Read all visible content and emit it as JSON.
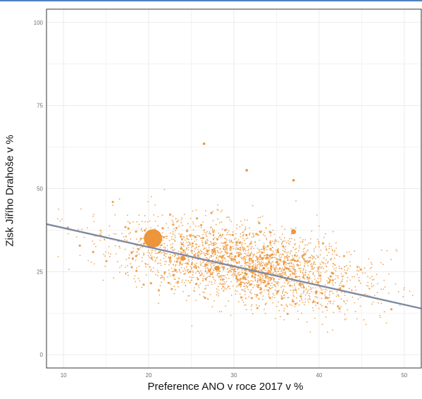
{
  "colors": {
    "accent": "#ec953a",
    "line": "#7e8aa2",
    "grid": "#ebebeb",
    "frame": "#333333",
    "top_border": "#4f81bd"
  },
  "chart_data": {
    "type": "scatter",
    "xlabel": "Preference ANO v roce 2017 v %",
    "ylabel": "Zisk Jiřího Drahoše v %",
    "xlim": [
      8,
      52
    ],
    "ylim": [
      -4,
      104
    ],
    "x_ticks": [
      10,
      20,
      30,
      40,
      50
    ],
    "y_ticks": [
      0,
      25,
      50,
      75,
      100
    ],
    "grid": true,
    "points_estimated": {
      "cluster_center": [
        31,
        24
      ],
      "x_range": [
        9,
        51
      ],
      "y_range": [
        2,
        64
      ],
      "count_approx": 5000
    },
    "highlighted_points": [
      {
        "x": 20.5,
        "y": 35,
        "size": "large"
      },
      {
        "x": 37,
        "y": 37,
        "size": "medium"
      },
      {
        "x": 24,
        "y": 29,
        "size": "medium"
      },
      {
        "x": 28,
        "y": 26,
        "size": "medium"
      },
      {
        "x": 26.5,
        "y": 63.5,
        "size": "small"
      },
      {
        "x": 31.5,
        "y": 55.5,
        "size": "small"
      },
      {
        "x": 37,
        "y": 52.5,
        "size": "small"
      },
      {
        "x": 33.5,
        "y": 26,
        "size": "small"
      }
    ],
    "regression_line": {
      "x": [
        8,
        52
      ],
      "y": [
        39.3,
        13.9
      ]
    }
  }
}
